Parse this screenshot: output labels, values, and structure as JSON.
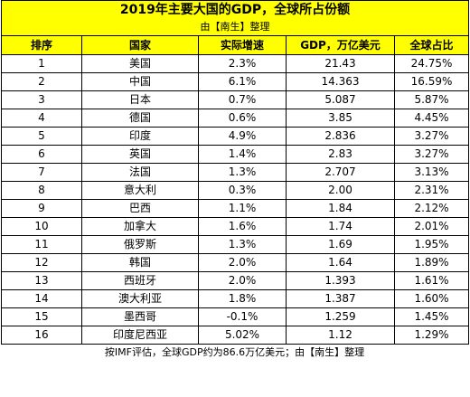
{
  "title": "2019年主要大国的GDP，全球所占份额",
  "subtitle": "由【南生】整理",
  "columns": [
    "排序",
    "国家",
    "实际增速",
    "GDP，万亿美元",
    "全球占比"
  ],
  "rows": [
    [
      "1",
      "美国",
      "2.3%",
      "21.43",
      "24.75%"
    ],
    [
      "2",
      "中国",
      "6.1%",
      "14.363",
      "16.59%"
    ],
    [
      "3",
      "日本",
      "0.7%",
      "5.087",
      "5.87%"
    ],
    [
      "4",
      "德国",
      "0.6%",
      "3.85",
      "4.45%"
    ],
    [
      "5",
      "印度",
      "4.9%",
      "2.836",
      "3.27%"
    ],
    [
      "6",
      "英国",
      "1.4%",
      "2.83",
      "3.27%"
    ],
    [
      "7",
      "法国",
      "1.3%",
      "2.707",
      "3.13%"
    ],
    [
      "8",
      "意大利",
      "0.3%",
      "2.00",
      "2.31%"
    ],
    [
      "9",
      "巴西",
      "1.1%",
      "1.84",
      "2.12%"
    ],
    [
      "10",
      "加拿大",
      "1.6%",
      "1.74",
      "2.01%"
    ],
    [
      "11",
      "俄罗斯",
      "1.3%",
      "1.69",
      "1.95%"
    ],
    [
      "12",
      "韩国",
      "2.0%",
      "1.64",
      "1.89%"
    ],
    [
      "13",
      "西班牙",
      "2.0%",
      "1.393",
      "1.61%"
    ],
    [
      "14",
      "澳大利亚",
      "1.8%",
      "1.387",
      "1.60%"
    ],
    [
      "15",
      "墨西哥",
      "-0.1%",
      "1.259",
      "1.45%"
    ],
    [
      "16",
      "印度尼西亚",
      "5.02%",
      "1.12",
      "1.29%"
    ]
  ],
  "footer": "按IMF评估，全球GDP约为86.6万亿美元；由【南生】整理",
  "colors": {
    "header_bg": "#ffff00",
    "border": "#000000"
  }
}
